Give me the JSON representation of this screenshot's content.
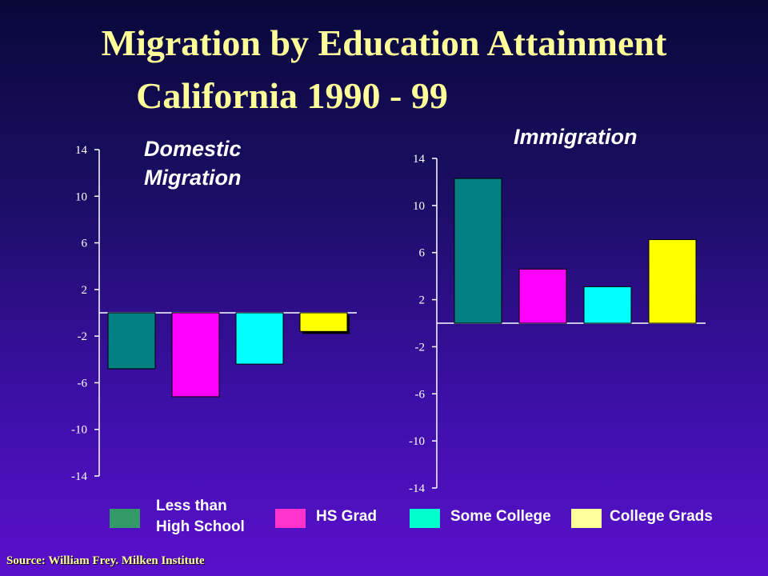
{
  "title_line1": "Migration by Education Attainment",
  "title_line2": "California 1990 - 99",
  "source": "Source: William Frey. Milken Institute",
  "legend": [
    {
      "label": "Less than\nHigh School",
      "color": "#339966"
    },
    {
      "label": "HS Grad",
      "color": "#ff33cc"
    },
    {
      "label": "Some College",
      "color": "#00ffcc"
    },
    {
      "label": "College Grads",
      "color": "#ffff99"
    }
  ],
  "chart_data": [
    {
      "type": "bar",
      "title": "Domestic\nMigration",
      "categories": [
        "Less than High School",
        "HS Grad",
        "Some College",
        "College Grads"
      ],
      "values": [
        -4.8,
        -7.2,
        -4.4,
        -1.6
      ],
      "colors": [
        "#008080",
        "#ff00ff",
        "#00ffff",
        "#ffff00"
      ],
      "ylim": [
        -14,
        14
      ],
      "yticks": [
        "14",
        "10",
        "6",
        "2",
        "-2",
        "-6",
        "-10",
        "-14"
      ]
    },
    {
      "type": "bar",
      "title": "Immigration",
      "categories": [
        "Less than High School",
        "HS Grad",
        "Some College",
        "College Grads"
      ],
      "values": [
        12.3,
        4.6,
        3.1,
        7.1
      ],
      "colors": [
        "#008080",
        "#ff00ff",
        "#00ffff",
        "#ffff00"
      ],
      "ylim": [
        -14,
        14
      ],
      "yticks": [
        "14",
        "10",
        "6",
        "2",
        "-2",
        "-6",
        "-10",
        "-14"
      ]
    }
  ]
}
